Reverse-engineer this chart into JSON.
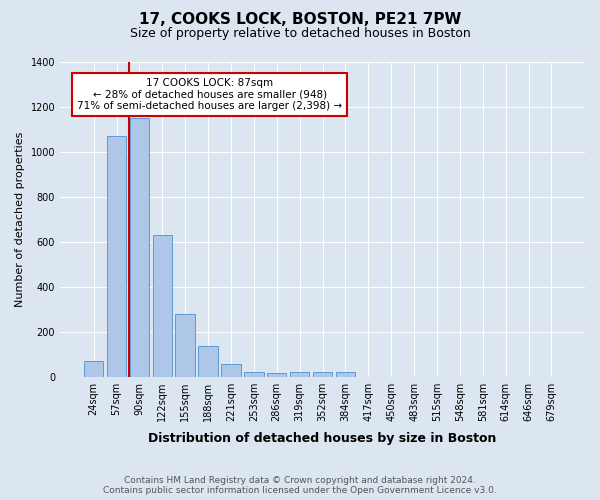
{
  "title1": "17, COOKS LOCK, BOSTON, PE21 7PW",
  "title2": "Size of property relative to detached houses in Boston",
  "xlabel": "Distribution of detached houses by size in Boston",
  "ylabel": "Number of detached properties",
  "footnote": "Contains HM Land Registry data © Crown copyright and database right 2024.\nContains public sector information licensed under the Open Government Licence v3.0.",
  "bins": [
    "24sqm",
    "57sqm",
    "90sqm",
    "122sqm",
    "155sqm",
    "188sqm",
    "221sqm",
    "253sqm",
    "286sqm",
    "319sqm",
    "352sqm",
    "384sqm",
    "417sqm",
    "450sqm",
    "483sqm",
    "515sqm",
    "548sqm",
    "581sqm",
    "614sqm",
    "646sqm",
    "679sqm"
  ],
  "values": [
    70,
    1070,
    1150,
    630,
    280,
    135,
    55,
    20,
    15,
    20,
    20,
    20,
    0,
    0,
    0,
    0,
    0,
    0,
    0,
    0,
    0
  ],
  "bar_color": "#aec6e8",
  "bar_edgecolor": "#5b9bd5",
  "redline_bin_index": 2,
  "annotation_text": "17 COOKS LOCK: 87sqm\n← 28% of detached houses are smaller (948)\n71% of semi-detached houses are larger (2,398) →",
  "annotation_box_color": "#ffffff",
  "annotation_box_edgecolor": "#cc0000",
  "redline_color": "#cc0000",
  "ylim": [
    0,
    1400
  ],
  "yticks": [
    0,
    200,
    400,
    600,
    800,
    1000,
    1200,
    1400
  ],
  "background_color": "#dce6f0",
  "plot_background": "#dce6f0",
  "title1_fontsize": 11,
  "title2_fontsize": 9,
  "ylabel_fontsize": 8,
  "xlabel_fontsize": 9,
  "tick_fontsize": 7,
  "footnote_fontsize": 6.5,
  "footnote_color": "#555555"
}
